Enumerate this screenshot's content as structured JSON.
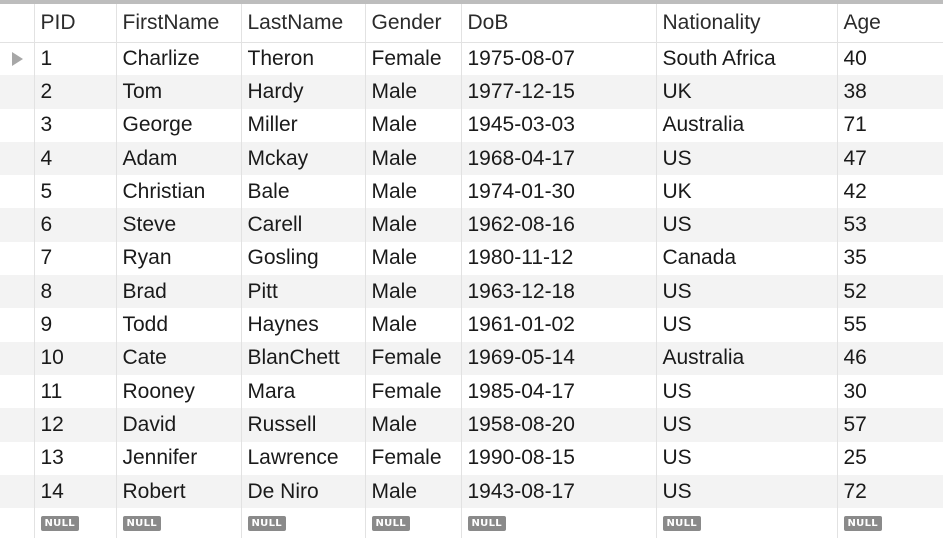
{
  "grid": {
    "columns": [
      "PID",
      "FirstName",
      "LastName",
      "Gender",
      "DoB",
      "Nationality",
      "Age"
    ],
    "rows": [
      [
        "1",
        "Charlize",
        "Theron",
        "Female",
        "1975-08-07",
        "South Africa",
        "40"
      ],
      [
        "2",
        "Tom",
        "Hardy",
        "Male",
        "1977-12-15",
        "UK",
        "38"
      ],
      [
        "3",
        "George",
        "Miller",
        "Male",
        "1945-03-03",
        "Australia",
        "71"
      ],
      [
        "4",
        "Adam",
        "Mckay",
        "Male",
        "1968-04-17",
        "US",
        "47"
      ],
      [
        "5",
        "Christian",
        "Bale",
        "Male",
        "1974-01-30",
        "UK",
        "42"
      ],
      [
        "6",
        "Steve",
        "Carell",
        "Male",
        "1962-08-16",
        "US",
        "53"
      ],
      [
        "7",
        "Ryan",
        "Gosling",
        "Male",
        "1980-11-12",
        "Canada",
        "35"
      ],
      [
        "8",
        "Brad",
        "Pitt",
        "Male",
        "1963-12-18",
        "US",
        "52"
      ],
      [
        "9",
        "Todd",
        "Haynes",
        "Male",
        "1961-01-02",
        "US",
        "55"
      ],
      [
        "10",
        "Cate",
        "BlanChett",
        "Female",
        "1969-05-14",
        "Australia",
        "46"
      ],
      [
        "11",
        "Rooney",
        "Mara",
        "Female",
        "1985-04-17",
        "US",
        "30"
      ],
      [
        "12",
        "David",
        "Russell",
        "Male",
        "1958-08-20",
        "US",
        "57"
      ],
      [
        "13",
        "Jennifer",
        "Lawrence",
        "Female",
        "1990-08-15",
        "US",
        "25"
      ],
      [
        "14",
        "Robert",
        "De Niro",
        "Male",
        "1943-08-17",
        "US",
        "72"
      ]
    ],
    "null_label": "NULL",
    "current_row_icon": "row-pointer-icon"
  }
}
